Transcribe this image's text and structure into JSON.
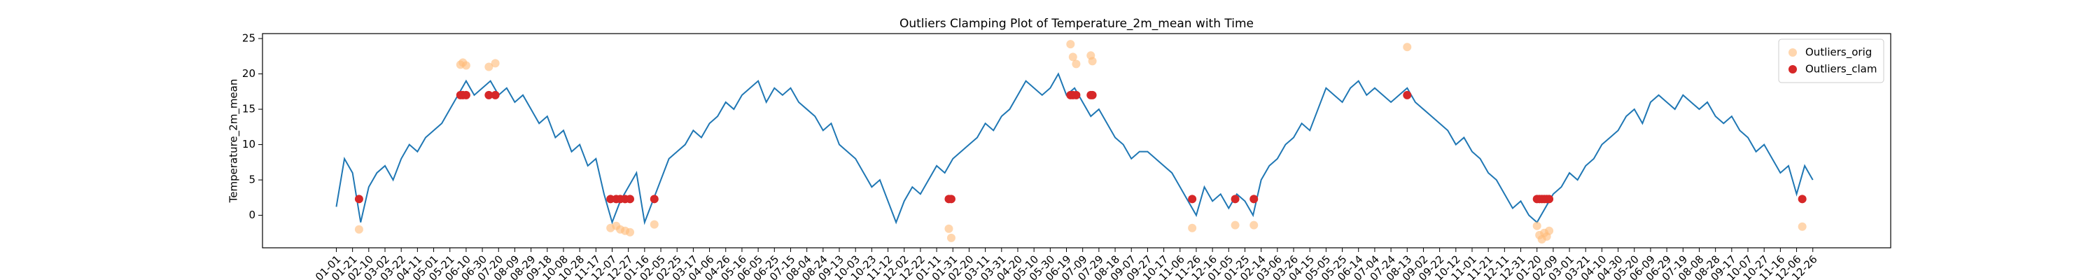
{
  "chart_data": {
    "type": "line",
    "title": "Outliers Clamping Plot of Temperature_2m_mean with Time",
    "y_label": "Temperature_2m_mean",
    "x": [
      0,
      10,
      20,
      30,
      40,
      50,
      60,
      70,
      80,
      90,
      100,
      110,
      120,
      130,
      140,
      150,
      160,
      170,
      180,
      190,
      200,
      210,
      220,
      230,
      240,
      250,
      260,
      270,
      280,
      290,
      300,
      310,
      320,
      330,
      340,
      350,
      360,
      370,
      380,
      390,
      400,
      410,
      420,
      430,
      440,
      450,
      460,
      470,
      480,
      490,
      500,
      510,
      520,
      530,
      540,
      550,
      560,
      570,
      580,
      590,
      600,
      610,
      620,
      630,
      640,
      650,
      660,
      670,
      680,
      690,
      700,
      710,
      720,
      730,
      740,
      750,
      760,
      770,
      780,
      790,
      800,
      810,
      820,
      830,
      840,
      850,
      860,
      870,
      880,
      890,
      900,
      910,
      920,
      930,
      940,
      950,
      960,
      970,
      980,
      990,
      1000,
      1010,
      1020,
      1030,
      1040,
      1050,
      1060,
      1070,
      1080,
      1090,
      1100,
      1110,
      1120,
      1130,
      1140,
      1150,
      1160,
      1170,
      1180,
      1190,
      1200,
      1210,
      1220,
      1230,
      1240,
      1250,
      1260,
      1270,
      1280,
      1290,
      1300,
      1310,
      1320,
      1330,
      1340,
      1350,
      1360,
      1370,
      1380,
      1390,
      1400,
      1410,
      1420,
      1430,
      1440,
      1450,
      1460,
      1470,
      1480,
      1490,
      1500,
      1510,
      1520,
      1530,
      1540,
      1550,
      1560,
      1570,
      1580,
      1590,
      1600,
      1610,
      1620,
      1630,
      1640,
      1650,
      1660,
      1670,
      1680,
      1690,
      1700,
      1710,
      1720,
      1730,
      1740,
      1750,
      1760,
      1770,
      1780,
      1790,
      1800,
      1810,
      1820
    ],
    "series": [
      {
        "type": "line",
        "color": "#1f77b4",
        "values": [
          1.2,
          8,
          6,
          -1,
          4,
          6,
          7,
          5,
          8,
          10,
          9,
          11,
          12,
          13,
          15,
          17,
          19,
          17,
          18,
          19,
          17,
          18,
          16,
          17,
          15,
          13,
          14,
          11,
          12,
          9,
          10,
          7,
          8,
          3,
          -1,
          2,
          4,
          6,
          -1,
          2,
          5,
          8,
          9,
          10,
          12,
          11,
          13,
          14,
          16,
          15,
          17,
          18,
          19,
          16,
          18,
          17,
          18,
          16,
          15,
          14,
          12,
          13,
          10,
          9,
          8,
          6,
          4,
          5,
          2,
          -1,
          2,
          4,
          3,
          5,
          7,
          6,
          8,
          9,
          10,
          11,
          13,
          12,
          14,
          15,
          17,
          19,
          18,
          17,
          18,
          20,
          17,
          18,
          16,
          14,
          15,
          13,
          11,
          10,
          8,
          9,
          9,
          8,
          7,
          6,
          4,
          2,
          0,
          4,
          2,
          3,
          1,
          3,
          2,
          0,
          5,
          7,
          8,
          10,
          11,
          13,
          12,
          15,
          18,
          17,
          16,
          18,
          19,
          17,
          18,
          17,
          16,
          17,
          18,
          16,
          15,
          14,
          13,
          12,
          10,
          11,
          9,
          8,
          6,
          5,
          3,
          1,
          2,
          0,
          -1,
          1,
          3,
          4,
          6,
          5,
          7,
          8,
          10,
          11,
          12,
          14,
          15,
          13,
          16,
          17,
          16,
          15,
          17,
          16,
          15,
          16,
          14,
          13,
          14,
          12,
          11,
          9,
          10,
          8,
          6,
          7,
          3,
          7,
          5
        ]
      },
      {
        "type": "scatter",
        "name": "Outliers_orig",
        "color": "#ffbb78",
        "x": [
          28,
          153,
          156,
          160,
          188,
          196,
          338,
          345,
          350,
          356,
          362,
          392,
          755,
          758,
          905,
          908,
          912,
          930,
          932,
          1055,
          1108,
          1131,
          1320,
          1480,
          1483,
          1486,
          1489,
          1492,
          1495,
          1807
        ],
        "values": [
          -2.0,
          21.3,
          21.6,
          21.2,
          21.0,
          21.5,
          -1.8,
          -1.5,
          -2.0,
          -2.2,
          -2.4,
          -1.3,
          -1.9,
          -3.2,
          24.2,
          22.4,
          21.4,
          22.6,
          21.8,
          -1.8,
          -1.4,
          -1.4,
          23.8,
          -1.5,
          -2.8,
          -3.4,
          -2.5,
          -3.0,
          -2.2,
          -1.6
        ]
      },
      {
        "type": "scatter",
        "name": "Outliers_clam",
        "color": "#d62728",
        "x": [
          28,
          153,
          156,
          160,
          188,
          196,
          338,
          345,
          350,
          356,
          362,
          392,
          755,
          758,
          905,
          908,
          912,
          930,
          932,
          1055,
          1108,
          1131,
          1320,
          1480,
          1483,
          1486,
          1489,
          1492,
          1495,
          1807
        ],
        "values": [
          2.3,
          17.0,
          17.0,
          17.0,
          17.0,
          17.0,
          2.3,
          2.3,
          2.3,
          2.3,
          2.3,
          2.3,
          2.3,
          2.3,
          17.0,
          17.0,
          17.0,
          17.0,
          17.0,
          2.3,
          2.3,
          2.3,
          17.0,
          2.3,
          2.3,
          2.3,
          2.3,
          2.3,
          2.3,
          2.3
        ]
      }
    ],
    "xlim": [
      -91,
      1916
    ],
    "ylim": [
      -4.6,
      25.7
    ],
    "yticks": [
      0,
      5,
      10,
      15,
      20,
      25
    ],
    "xticks": [
      {
        "value": 0,
        "label": "01-01"
      },
      {
        "value": 20,
        "label": "01-21"
      },
      {
        "value": 40,
        "label": "02-10"
      },
      {
        "value": 60,
        "label": "03-02"
      },
      {
        "value": 80,
        "label": "03-22"
      },
      {
        "value": 100,
        "label": "04-11"
      },
      {
        "value": 120,
        "label": "05-01"
      },
      {
        "value": 140,
        "label": "05-21"
      },
      {
        "value": 160,
        "label": "06-10"
      },
      {
        "value": 180,
        "label": "06-30"
      },
      {
        "value": 200,
        "label": "07-20"
      },
      {
        "value": 220,
        "label": "08-09"
      },
      {
        "value": 240,
        "label": "08-29"
      },
      {
        "value": 260,
        "label": "09-18"
      },
      {
        "value": 280,
        "label": "10-08"
      },
      {
        "value": 300,
        "label": "10-28"
      },
      {
        "value": 320,
        "label": "11-17"
      },
      {
        "value": 340,
        "label": "12-07"
      },
      {
        "value": 360,
        "label": "12-27"
      },
      {
        "value": 380,
        "label": "01-16"
      },
      {
        "value": 400,
        "label": "02-05"
      },
      {
        "value": 420,
        "label": "02-25"
      },
      {
        "value": 440,
        "label": "03-17"
      },
      {
        "value": 460,
        "label": "04-06"
      },
      {
        "value": 480,
        "label": "04-26"
      },
      {
        "value": 500,
        "label": "05-16"
      },
      {
        "value": 520,
        "label": "06-05"
      },
      {
        "value": 540,
        "label": "06-25"
      },
      {
        "value": 560,
        "label": "07-15"
      },
      {
        "value": 580,
        "label": "08-04"
      },
      {
        "value": 600,
        "label": "08-24"
      },
      {
        "value": 620,
        "label": "09-13"
      },
      {
        "value": 640,
        "label": "10-03"
      },
      {
        "value": 660,
        "label": "10-23"
      },
      {
        "value": 680,
        "label": "11-12"
      },
      {
        "value": 700,
        "label": "12-02"
      },
      {
        "value": 720,
        "label": "12-22"
      },
      {
        "value": 740,
        "label": "01-11"
      },
      {
        "value": 760,
        "label": "01-31"
      },
      {
        "value": 780,
        "label": "02-20"
      },
      {
        "value": 800,
        "label": "03-11"
      },
      {
        "value": 820,
        "label": "03-31"
      },
      {
        "value": 840,
        "label": "04-20"
      },
      {
        "value": 860,
        "label": "05-10"
      },
      {
        "value": 880,
        "label": "05-30"
      },
      {
        "value": 900,
        "label": "06-19"
      },
      {
        "value": 920,
        "label": "07-09"
      },
      {
        "value": 940,
        "label": "07-29"
      },
      {
        "value": 960,
        "label": "08-18"
      },
      {
        "value": 980,
        "label": "09-07"
      },
      {
        "value": 1000,
        "label": "09-27"
      },
      {
        "value": 1020,
        "label": "10-17"
      },
      {
        "value": 1040,
        "label": "11-06"
      },
      {
        "value": 1060,
        "label": "11-26"
      },
      {
        "value": 1080,
        "label": "12-16"
      },
      {
        "value": 1100,
        "label": "01-05"
      },
      {
        "value": 1120,
        "label": "01-25"
      },
      {
        "value": 1140,
        "label": "02-14"
      },
      {
        "value": 1160,
        "label": "03-06"
      },
      {
        "value": 1180,
        "label": "03-26"
      },
      {
        "value": 1200,
        "label": "04-15"
      },
      {
        "value": 1220,
        "label": "05-05"
      },
      {
        "value": 1240,
        "label": "05-25"
      },
      {
        "value": 1260,
        "label": "06-14"
      },
      {
        "value": 1280,
        "label": "07-04"
      },
      {
        "value": 1300,
        "label": "07-24"
      },
      {
        "value": 1320,
        "label": "08-13"
      },
      {
        "value": 1340,
        "label": "09-02"
      },
      {
        "value": 1360,
        "label": "09-22"
      },
      {
        "value": 1380,
        "label": "10-12"
      },
      {
        "value": 1400,
        "label": "11-01"
      },
      {
        "value": 1420,
        "label": "11-21"
      },
      {
        "value": 1440,
        "label": "12-11"
      },
      {
        "value": 1460,
        "label": "12-31"
      },
      {
        "value": 1480,
        "label": "01-20"
      },
      {
        "value": 1500,
        "label": "02-09"
      },
      {
        "value": 1520,
        "label": "03-01"
      },
      {
        "value": 1540,
        "label": "03-21"
      },
      {
        "value": 1560,
        "label": "04-10"
      },
      {
        "value": 1580,
        "label": "04-30"
      },
      {
        "value": 1600,
        "label": "05-20"
      },
      {
        "value": 1620,
        "label": "06-09"
      },
      {
        "value": 1640,
        "label": "06-29"
      },
      {
        "value": 1660,
        "label": "07-19"
      },
      {
        "value": 1680,
        "label": "08-08"
      },
      {
        "value": 1700,
        "label": "08-28"
      },
      {
        "value": 1720,
        "label": "09-17"
      },
      {
        "value": 1740,
        "label": "10-07"
      },
      {
        "value": 1760,
        "label": "10-27"
      },
      {
        "value": 1780,
        "label": "11-16"
      },
      {
        "value": 1800,
        "label": "12-06"
      },
      {
        "value": 1820,
        "label": "12-26"
      }
    ],
    "legend_position": "upper right"
  }
}
